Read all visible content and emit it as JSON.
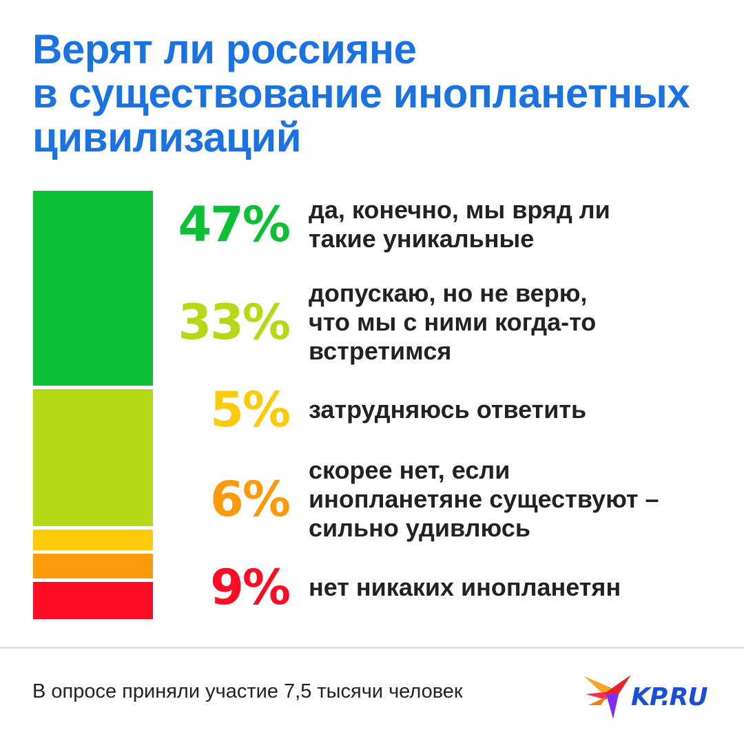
{
  "title_lines": [
    "Верят ли россияне",
    "в существование инопланетных",
    "цивилизаций"
  ],
  "chart_data": {
    "type": "bar",
    "orientation": "stacked-vertical",
    "categories": [
      "да, конечно, мы вряд ли такие уникальные",
      "допускаю, но не верю, что мы с ними когда-то встретимся",
      "затрудняюсь ответить",
      "скорее нет, если инопланетяне существуют – сильно удивлюсь",
      "нет никаких инопланетян"
    ],
    "values": [
      47,
      33,
      5,
      6,
      9
    ],
    "unit": "%",
    "value_labels": [
      "47%",
      "33%",
      "5%",
      "6%",
      "9%"
    ],
    "label_lines": [
      [
        "да, конечно, мы вряд ли",
        "такие уникальные"
      ],
      [
        "допускаю, но не верю,",
        "что мы с ними когда-то",
        "встретимся"
      ],
      [
        "затрудняюсь ответить"
      ],
      [
        "скорее нет, если",
        "инопланетяне существуют –",
        "сильно удивлюсь"
      ],
      [
        "нет никаких инопланетян"
      ]
    ],
    "colors": [
      "#0dbf35",
      "#b5d817",
      "#fdcb0a",
      "#fb9b0b",
      "#ff0b25"
    ],
    "legend": "right"
  },
  "footnote": "В опросе приняли участие 7,5 тысячи человек",
  "logo": {
    "text": "KP.RU",
    "icon": "swallow-bird-icon"
  },
  "colors": {
    "title": "#1a73e1",
    "logo_text": "#1a4fd6"
  }
}
